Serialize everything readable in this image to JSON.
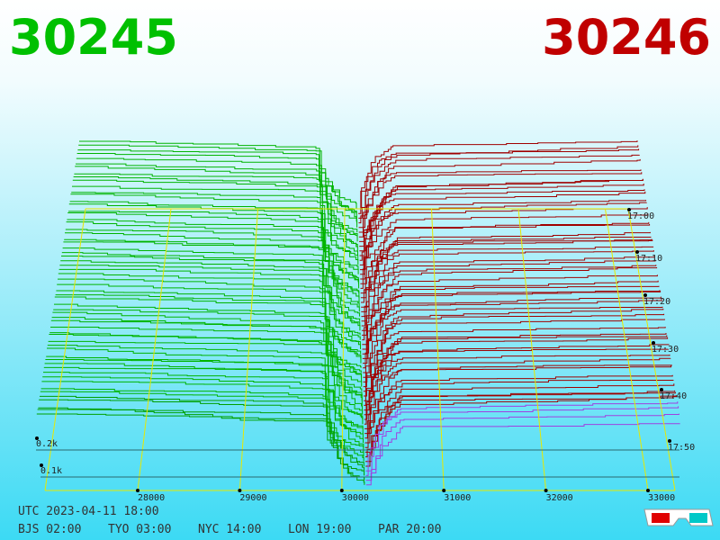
{
  "header": {
    "bid": "30245",
    "ask": "30246"
  },
  "price_axis": {
    "labels": [
      "28000",
      "29000",
      "30000",
      "31000",
      "32000",
      "33000"
    ]
  },
  "time_axis": {
    "labels": [
      "17:00",
      "17:10",
      "17:20",
      "17:30",
      "17:40",
      "17:50"
    ]
  },
  "depth_axis": {
    "labels": [
      "0.2k",
      "0.1k"
    ]
  },
  "footer": {
    "utc": "UTC 2023-04-11 18:00",
    "zones": [
      "BJS 02:00",
      "TYO 03:00",
      "NYC 14:00",
      "LON 19:00",
      "PAR 20:00"
    ]
  }
}
